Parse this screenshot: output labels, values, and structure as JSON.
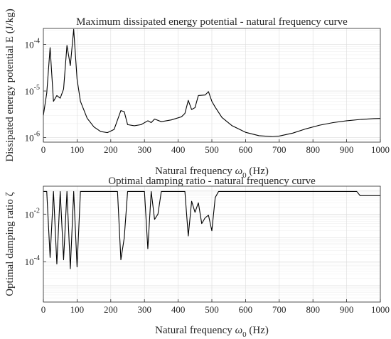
{
  "colors": {
    "line": "#000000",
    "grid": "#dcdcdc",
    "axis": "#262626"
  },
  "chart_data": [
    {
      "type": "line",
      "title": "Maximum dissipated energy potential - natural frequency curve",
      "xlabel": "Natural frequency ω0 (Hz)",
      "xlabel_parts": {
        "main": "Natural frequency ",
        "symbol": "ω",
        "sub": "0",
        "unit": " (Hz)"
      },
      "ylabel": "Dissipated energy potential E (J/kg)",
      "xlim": [
        0,
        1000
      ],
      "ylim": [
        8e-07,
        0.00022
      ],
      "yscale": "log",
      "grid": true,
      "xticks": [
        0,
        100,
        200,
        300,
        400,
        500,
        600,
        700,
        800,
        900,
        1000
      ],
      "xtick_labels": [
        "0",
        "100",
        "200",
        "300",
        "400",
        "500",
        "600",
        "700",
        "800",
        "900",
        "1000"
      ],
      "yticks": [
        1e-06,
        1e-05,
        0.0001
      ],
      "ytick_labels": [
        {
          "base": "10",
          "exp": "-6"
        },
        {
          "base": "10",
          "exp": "-5"
        },
        {
          "base": "10",
          "exp": "-4"
        }
      ],
      "x": [
        0,
        10,
        20,
        30,
        40,
        50,
        60,
        70,
        80,
        90,
        100,
        110,
        130,
        150,
        170,
        190,
        210,
        230,
        240,
        250,
        270,
        290,
        310,
        320,
        330,
        350,
        380,
        410,
        420,
        430,
        440,
        450,
        460,
        480,
        490,
        500,
        510,
        530,
        560,
        600,
        640,
        680,
        700,
        740,
        780,
        820,
        860,
        900,
        940,
        980,
        1000
      ],
      "y": [
        3e-06,
        9e-06,
        8.5e-05,
        6e-06,
        8e-06,
        7e-06,
        1.1e-05,
        9.5e-05,
        3.5e-05,
        0.00021,
        1.8e-05,
        6e-06,
        2.6e-06,
        1.7e-06,
        1.35e-06,
        1.28e-06,
        1.5e-06,
        3.8e-06,
        3.6e-06,
        1.9e-06,
        1.8e-06,
        1.9e-06,
        2.3e-06,
        2.1e-06,
        2.5e-06,
        2.2e-06,
        2.4e-06,
        2.8e-06,
        3.3e-06,
        6.3e-06,
        4e-06,
        4.4e-06,
        8e-06,
        8.2e-06,
        9.7e-06,
        6e-06,
        4.5e-06,
        2.7e-06,
        1.8e-06,
        1.3e-06,
        1.1e-06,
        1.05e-06,
        1.08e-06,
        1.25e-06,
        1.55e-06,
        1.85e-06,
        2.1e-06,
        2.3e-06,
        2.45e-06,
        2.55e-06,
        2.58e-06
      ]
    },
    {
      "type": "line",
      "title": "Optimal damping ratio - natural frequency curve",
      "xlabel": "Natural frequency ω0 (Hz)",
      "xlabel_parts": {
        "main": "Natural frequency ",
        "symbol": "ω",
        "sub": "0",
        "unit": " (Hz)"
      },
      "ylabel": "Optimal damping ratio ζ",
      "xlim": [
        0,
        1000
      ],
      "ylim": [
        2e-06,
        0.15
      ],
      "yscale": "log",
      "grid": true,
      "xticks": [
        0,
        100,
        200,
        300,
        400,
        500,
        600,
        700,
        800,
        900,
        1000
      ],
      "xtick_labels": [
        "0",
        "100",
        "200",
        "300",
        "400",
        "500",
        "600",
        "700",
        "800",
        "900",
        "1000"
      ],
      "yticks": [
        0.0001,
        0.01
      ],
      "ytick_labels": [
        {
          "base": "10",
          "exp": "-4"
        },
        {
          "base": "10",
          "exp": "-2"
        }
      ],
      "x": [
        0,
        10,
        20,
        30,
        40,
        50,
        60,
        70,
        80,
        90,
        100,
        110,
        120,
        130,
        140,
        150,
        160,
        170,
        180,
        190,
        200,
        210,
        220,
        230,
        240,
        250,
        260,
        270,
        280,
        290,
        300,
        310,
        320,
        330,
        340,
        350,
        360,
        370,
        380,
        390,
        400,
        410,
        420,
        430,
        440,
        450,
        460,
        470,
        480,
        490,
        500,
        510,
        520,
        530,
        540,
        560,
        600,
        700,
        800,
        900,
        930,
        940,
        1000
      ],
      "y": [
        0.09,
        0.09,
        0.00015,
        0.09,
        8e-05,
        0.09,
        0.00012,
        0.09,
        5e-05,
        0.09,
        6e-05,
        0.09,
        0.09,
        0.09,
        0.09,
        0.09,
        0.09,
        0.09,
        0.09,
        0.09,
        0.09,
        0.09,
        0.09,
        0.00012,
        0.001,
        0.09,
        0.09,
        0.09,
        0.09,
        0.09,
        0.09,
        0.00035,
        0.09,
        0.006,
        0.01,
        0.09,
        0.09,
        0.09,
        0.09,
        0.09,
        0.09,
        0.09,
        0.09,
        0.0012,
        0.035,
        0.012,
        0.03,
        0.004,
        0.007,
        0.009,
        0.002,
        0.05,
        0.09,
        0.09,
        0.09,
        0.09,
        0.09,
        0.09,
        0.09,
        0.09,
        0.09,
        0.06,
        0.06
      ]
    }
  ]
}
